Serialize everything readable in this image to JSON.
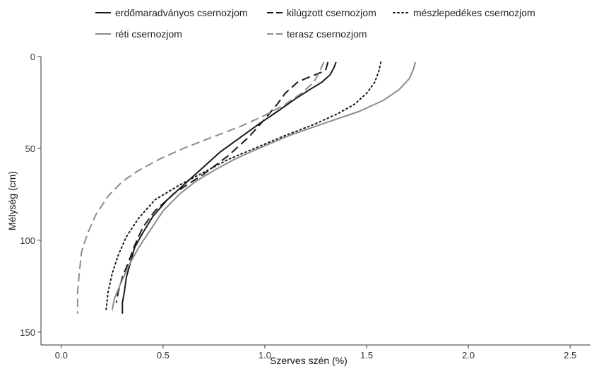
{
  "chart_data": {
    "type": "line",
    "xlabel": "Szerves szén (%)",
    "ylabel": "Mélység (cm)",
    "xlim": [
      -0.1,
      2.6
    ],
    "ylim": [
      0,
      157
    ],
    "y_reversed": true,
    "x_ticks": [
      "0.0",
      "0.5",
      "1.0",
      "1.5",
      "2.0",
      "2.5"
    ],
    "x_tick_values": [
      0.0,
      0.5,
      1.0,
      1.5,
      2.0,
      2.5
    ],
    "y_ticks": [
      "0",
      "50",
      "100",
      "150"
    ],
    "y_tick_values": [
      0,
      50,
      100,
      150
    ],
    "grid": false,
    "legend_position": "top",
    "series": [
      {
        "name": "erdőmaradványos csernozjom",
        "color": "#1a1a1a",
        "dash": "solid",
        "x": [
          1.35,
          1.34,
          1.32,
          1.28,
          1.22,
          1.15,
          1.06,
          0.98,
          0.88,
          0.78,
          0.68,
          0.6,
          0.52,
          0.45,
          0.4,
          0.36,
          0.34,
          0.32,
          0.31,
          0.3,
          0.3
        ],
        "y": [
          3,
          6,
          10,
          14,
          18,
          23,
          30,
          36,
          44,
          52,
          62,
          70,
          78,
          87,
          96,
          104,
          112,
          120,
          128,
          134,
          140
        ]
      },
      {
        "name": "kilúgzott csernozjom",
        "color": "#1a1a1a",
        "dash": "long",
        "x": [
          1.31,
          1.3,
          1.29,
          1.2,
          1.16,
          1.1,
          1.06,
          1.0,
          0.92,
          0.82,
          0.7,
          0.56,
          0.46,
          0.4,
          0.36,
          0.33,
          0.3,
          0.28,
          0.27
        ],
        "y": [
          3,
          7,
          8,
          12,
          14,
          20,
          26,
          34,
          44,
          54,
          64,
          74,
          84,
          93,
          103,
          112,
          120,
          128,
          134
        ]
      },
      {
        "name": "mészlepedékes csernozjom",
        "color": "#1a1a1a",
        "dash": "dotted",
        "x": [
          1.57,
          1.56,
          1.54,
          1.5,
          1.44,
          1.36,
          1.24,
          1.1,
          0.95,
          0.82,
          0.7,
          0.58,
          0.46,
          0.38,
          0.32,
          0.28,
          0.25,
          0.23,
          0.22
        ],
        "y": [
          3,
          8,
          14,
          20,
          26,
          31,
          37,
          43,
          50,
          56,
          63,
          70,
          78,
          88,
          98,
          108,
          118,
          128,
          138
        ]
      },
      {
        "name": "réti csernozjom",
        "color": "#8c8c8c",
        "dash": "solid",
        "x": [
          1.74,
          1.73,
          1.71,
          1.66,
          1.58,
          1.46,
          1.3,
          1.12,
          0.97,
          0.85,
          0.75,
          0.66,
          0.58,
          0.5,
          0.44,
          0.38,
          0.33,
          0.29,
          0.26,
          0.25
        ],
        "y": [
          3,
          7,
          12,
          18,
          24,
          30,
          36,
          43,
          50,
          56,
          62,
          68,
          75,
          84,
          94,
          104,
          114,
          124,
          132,
          138
        ]
      },
      {
        "name": "terasz csernozjom",
        "color": "#8c8c8c",
        "dash": "long",
        "x": [
          1.29,
          1.27,
          1.24,
          1.18,
          1.1,
          1.0,
          0.88,
          0.74,
          0.6,
          0.48,
          0.38,
          0.3,
          0.23,
          0.17,
          0.13,
          0.1,
          0.09,
          0.08,
          0.08
        ],
        "y": [
          3,
          8,
          14,
          20,
          26,
          32,
          38,
          44,
          50,
          56,
          62,
          68,
          76,
          86,
          96,
          106,
          116,
          128,
          140
        ]
      }
    ]
  }
}
